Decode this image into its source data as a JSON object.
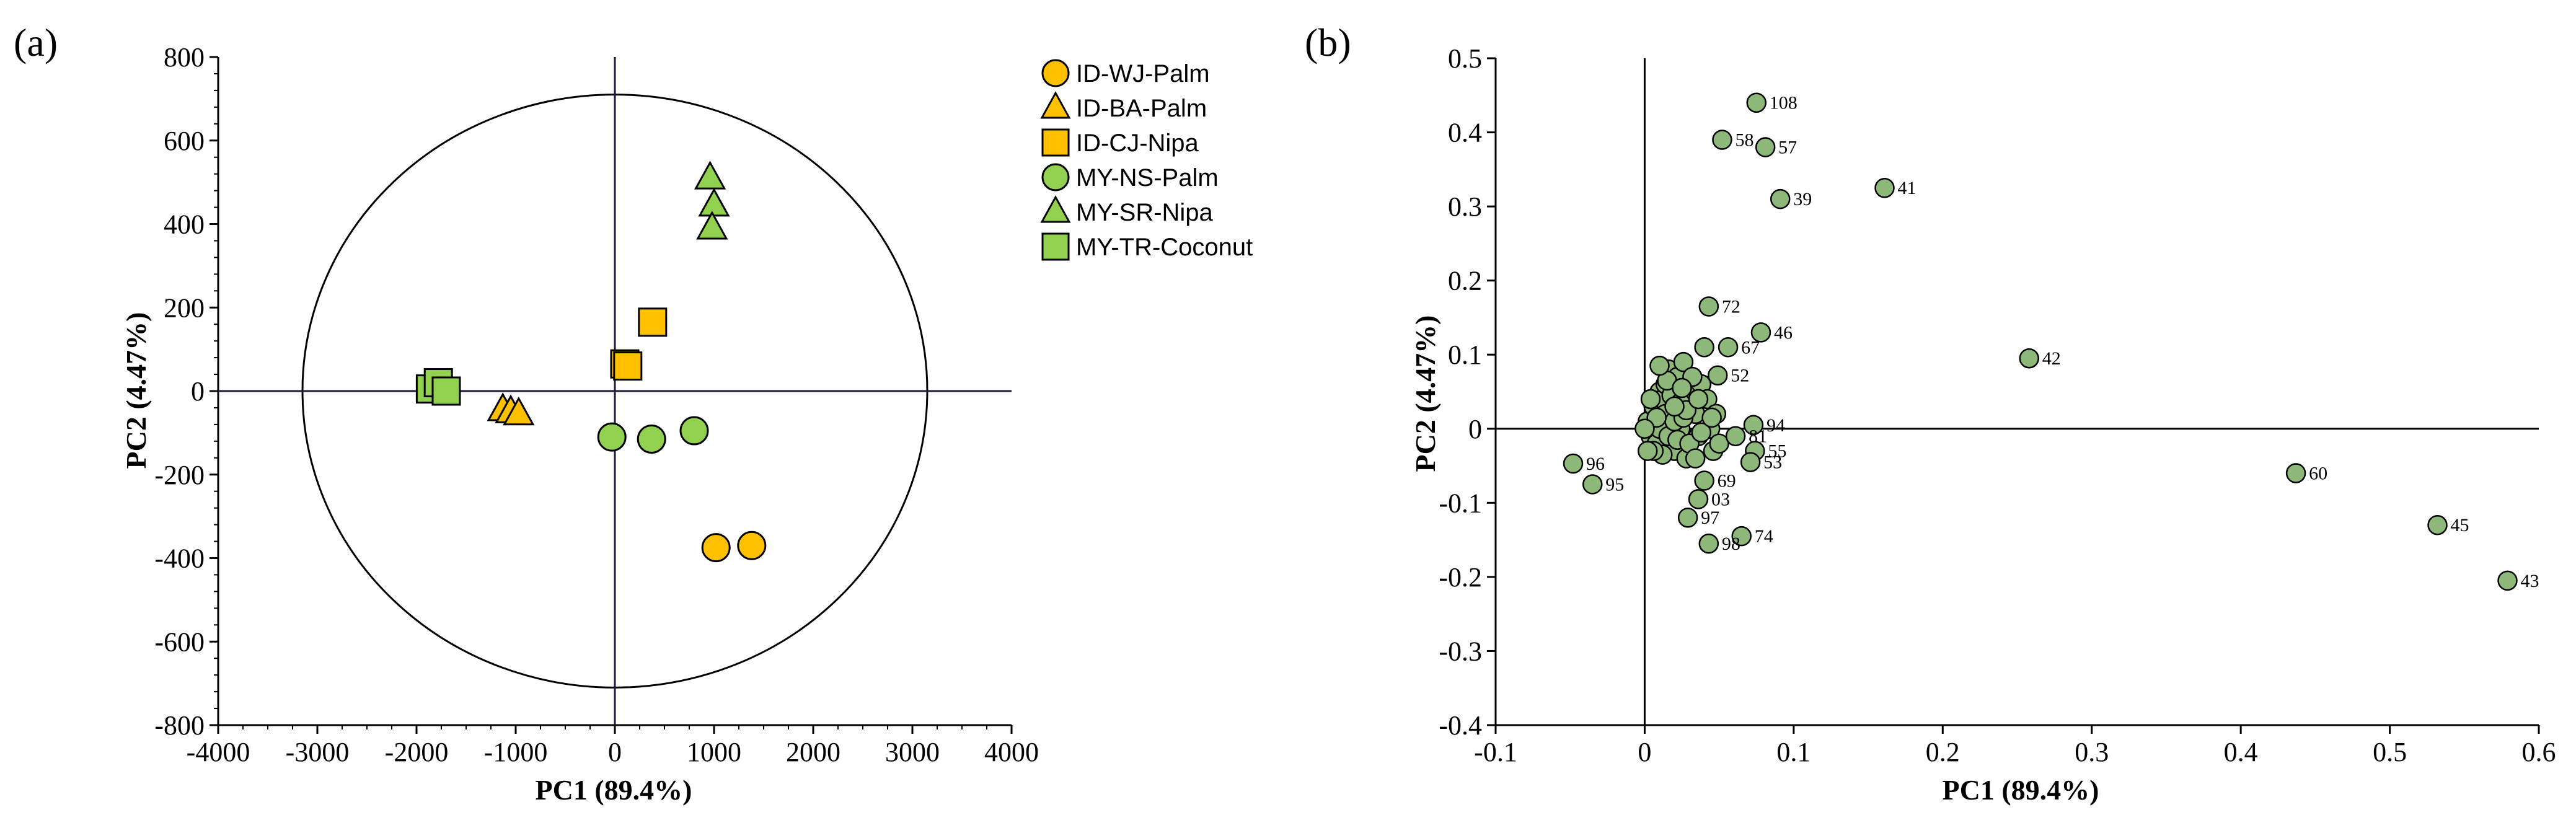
{
  "chart_data": [
    {
      "panel": "(a)",
      "type": "scatter",
      "title": "",
      "xlabel": "PC1 (89.4%)",
      "ylabel": "PC2 (4.47%)",
      "xlim": [
        -4000,
        4000
      ],
      "ylim": [
        -800,
        800
      ],
      "xticks": [
        -4000,
        -3000,
        -2000,
        -1000,
        0,
        1000,
        2000,
        3000,
        4000
      ],
      "yticks": [
        -800,
        -600,
        -400,
        -200,
        0,
        200,
        400,
        600,
        800
      ],
      "confidence_ellipse": {
        "cx": 0,
        "cy": 0,
        "rx": 3150,
        "ry": 710
      },
      "legend_position": "top-right",
      "series": [
        {
          "name": "ID-WJ-Palm",
          "marker": "circle",
          "color": "#FFC000",
          "points": [
            [
              1020,
              -375
            ],
            [
              1380,
              -370
            ]
          ]
        },
        {
          "name": "ID-BA-Palm",
          "marker": "triangle",
          "color": "#FFC000",
          "points": [
            [
              -1130,
              -45
            ],
            [
              -1050,
              -50
            ],
            [
              -970,
              -55
            ]
          ]
        },
        {
          "name": "ID-CJ-Nipa",
          "marker": "square",
          "color": "#FFC000",
          "points": [
            [
              100,
              65
            ],
            [
              130,
              60
            ],
            [
              380,
              165
            ]
          ]
        },
        {
          "name": "MY-NS-Palm",
          "marker": "circle",
          "color": "#92D050",
          "points": [
            [
              -30,
              -110
            ],
            [
              370,
              -115
            ],
            [
              800,
              -95
            ]
          ]
        },
        {
          "name": "MY-SR-Nipa",
          "marker": "triangle",
          "color": "#92D050",
          "points": [
            [
              960,
              510
            ],
            [
              1000,
              445
            ],
            [
              980,
              390
            ]
          ]
        },
        {
          "name": "MY-TR-Coconut",
          "marker": "square",
          "color": "#92D050",
          "points": [
            [
              -1860,
              5
            ],
            [
              -1780,
              20
            ],
            [
              -1700,
              0
            ]
          ]
        }
      ]
    },
    {
      "panel": "(b)",
      "type": "scatter",
      "title": "",
      "xlabel": "PC1 (89.4%)",
      "ylabel": "PC2 (4.47%)",
      "xlim": [
        -0.1,
        0.6
      ],
      "ylim": [
        -0.4,
        0.5
      ],
      "xticks": [
        -0.1,
        0,
        0.1,
        0.2,
        0.3,
        0.4,
        0.5,
        0.6
      ],
      "yticks": [
        -0.4,
        -0.3,
        -0.2,
        -0.1,
        0,
        0.1,
        0.2,
        0.3,
        0.4,
        0.5
      ],
      "marker_color": "#8DB87A",
      "labeled_points": [
        {
          "label": "108",
          "x": 0.075,
          "y": 0.44
        },
        {
          "label": "58",
          "x": 0.052,
          "y": 0.39
        },
        {
          "label": "57",
          "x": 0.081,
          "y": 0.38
        },
        {
          "label": "39",
          "x": 0.091,
          "y": 0.31
        },
        {
          "label": "41",
          "x": 0.161,
          "y": 0.325
        },
        {
          "label": "72",
          "x": 0.043,
          "y": 0.165
        },
        {
          "label": "46",
          "x": 0.078,
          "y": 0.13
        },
        {
          "label": "67",
          "x": 0.056,
          "y": 0.11
        },
        {
          "label": "52",
          "x": 0.049,
          "y": 0.072
        },
        {
          "label": "42",
          "x": 0.258,
          "y": 0.095
        },
        {
          "label": "94",
          "x": 0.073,
          "y": 0.005
        },
        {
          "label": "81",
          "x": 0.061,
          "y": -0.01
        },
        {
          "label": "55",
          "x": 0.074,
          "y": -0.03
        },
        {
          "label": "53",
          "x": 0.071,
          "y": -0.045
        },
        {
          "label": "69",
          "x": 0.04,
          "y": -0.07
        },
        {
          "label": "03",
          "x": 0.036,
          "y": -0.095
        },
        {
          "label": "97",
          "x": 0.029,
          "y": -0.12
        },
        {
          "label": "74",
          "x": 0.065,
          "y": -0.145
        },
        {
          "label": "98",
          "x": 0.043,
          "y": -0.155
        },
        {
          "label": "96",
          "x": -0.048,
          "y": -0.047
        },
        {
          "label": "95",
          "x": -0.035,
          "y": -0.075
        },
        {
          "label": "60",
          "x": 0.437,
          "y": -0.06
        },
        {
          "label": "45",
          "x": 0.532,
          "y": -0.13
        },
        {
          "label": "43",
          "x": 0.579,
          "y": -0.205
        }
      ],
      "cluster_points": [
        [
          0.002,
          0.01
        ],
        [
          0.004,
          -0.01
        ],
        [
          0.006,
          0.03
        ],
        [
          0.008,
          -0.02
        ],
        [
          0.01,
          0.05
        ],
        [
          0.012,
          0.04
        ],
        [
          0.014,
          0.06
        ],
        [
          0.016,
          0.08
        ],
        [
          0.018,
          0.02
        ],
        [
          0.02,
          -0.03
        ],
        [
          0.022,
          0.07
        ],
        [
          0.024,
          0.0
        ],
        [
          0.026,
          0.09
        ],
        [
          0.028,
          -0.04
        ],
        [
          0.03,
          0.05
        ],
        [
          0.032,
          0.03
        ],
        [
          0.034,
          0.02
        ],
        [
          0.036,
          -0.01
        ],
        [
          0.038,
          0.06
        ],
        [
          0.04,
          0.11
        ],
        [
          0.042,
          0.04
        ],
        [
          0.044,
          0.0
        ],
        [
          0.046,
          -0.03
        ],
        [
          0.048,
          0.02
        ],
        [
          0.05,
          -0.02
        ],
        [
          0.01,
          0.0
        ],
        [
          0.012,
          -0.035
        ],
        [
          0.014,
          0.02
        ],
        [
          0.016,
          -0.01
        ],
        [
          0.018,
          0.045
        ],
        [
          0.02,
          0.01
        ],
        [
          0.022,
          -0.015
        ],
        [
          0.024,
          0.035
        ],
        [
          0.026,
          0.015
        ],
        [
          0.028,
          0.025
        ],
        [
          0.006,
          -0.03
        ],
        [
          0.008,
          0.015
        ],
        [
          0.03,
          -0.02
        ],
        [
          0.032,
          0.07
        ],
        [
          0.034,
          -0.04
        ],
        [
          0.0,
          0.0
        ],
        [
          0.002,
          -0.03
        ],
        [
          0.004,
          0.04
        ],
        [
          0.036,
          0.04
        ],
        [
          0.038,
          -0.005
        ],
        [
          0.015,
          0.065
        ],
        [
          0.025,
          0.055
        ],
        [
          0.045,
          0.015
        ],
        [
          0.01,
          0.085
        ],
        [
          0.02,
          0.03
        ]
      ]
    }
  ]
}
